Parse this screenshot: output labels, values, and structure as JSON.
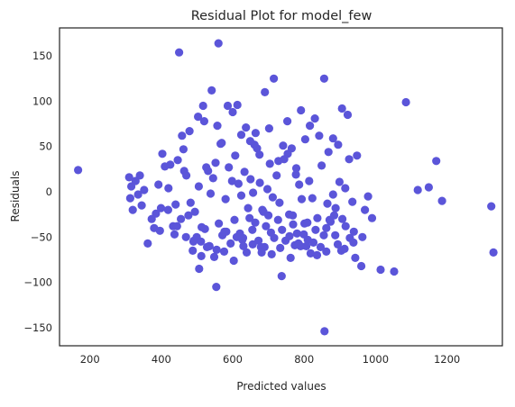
{
  "chart_data": {
    "type": "scatter",
    "title": "Residual Plot for model_few",
    "xlabel": "Predicted values",
    "ylabel": "Residuals",
    "xlim": [
      115,
      1355
    ],
    "ylim": [
      -170,
      181
    ],
    "xticks": [
      200,
      400,
      600,
      800,
      1000,
      1200
    ],
    "yticks": [
      -150,
      -100,
      -50,
      0,
      50,
      100,
      150
    ],
    "grid": false,
    "color": "#5b55d9",
    "series": [
      {
        "x": [
          167,
          310,
          316,
          335,
          345,
          362,
          399,
          403,
          425,
          440,
          450,
          464,
          490,
          506,
          528,
          554,
          560,
          576,
          627,
          643,
          661,
          689,
          737,
          754,
          762,
          774,
          793,
          806,
          857,
          881,
          943,
          313,
          320,
          328,
          340,
          352,
          373,
          385,
          392,
          410,
          420,
          433,
          446,
          458,
          470,
          482,
          494,
          505,
          513,
          520,
          531,
          538,
          545,
          552,
          566,
          580,
          589,
          598,
          607,
          616,
          624,
          633,
          650,
          657,
          668,
          676,
          683,
          697,
          704,
          712,
          723,
          731,
          744,
          768,
          777,
          786,
          801,
          814,
          823,
          832,
          849,
          865,
          871,
          888,
          899,
          907,
          915,
          926,
          935,
          960,
          970,
          979,
          990,
          380,
          396,
          419,
          437,
          455,
          476,
          488,
          499,
          511,
          522,
          535,
          548,
          561,
          571,
          582,
          594,
          605,
          611,
          620,
          630,
          639,
          647,
          655,
          663,
          672,
          679,
          686,
          693,
          700,
          709,
          716,
          727,
          738,
          748,
          758,
          769,
          780,
          790,
          799,
          809,
          818,
          826,
          837,
          846,
          855,
          862,
          874,
          884,
          894,
          904,
          916,
          928,
          939,
          1014,
          1052,
          1085,
          1118,
          1149,
          1170,
          1186,
          1324,
          1330,
          444,
          462,
          479,
          503,
          517,
          526,
          541,
          557,
          569,
          586,
          600,
          613,
          624,
          637,
          649,
          664,
          675,
          690,
          702,
          715,
          728,
          741,
          753,
          765,
          778,
          791,
          803,
          816,
          830,
          842,
          856,
          868,
          881,
          895,
          906,
          922,
          948,
          469,
          491,
          512,
          534,
          555,
          577,
          603,
          629,
          656,
          681,
          707,
          733,
          759,
          784,
          810,
          836,
          862,
          887,
          913,
          938,
          963
        ],
        "y": [
          24,
          16,
          6,
          -3,
          -15,
          -57,
          -18,
          42,
          30,
          -14,
          154,
          23,
          -55,
          -85,
          -61,
          -105,
          164,
          -66,
          -53,
          -18,
          52,
          -61,
          -93,
          42,
          -73,
          -59,
          -8,
          -60,
          -154,
          -3,
          -73,
          -7,
          -20,
          12,
          18,
          2,
          -30,
          -24,
          8,
          28,
          4,
          -38,
          35,
          62,
          18,
          -12,
          -22,
          6,
          -39,
          78,
          23,
          -2,
          15,
          32,
          53,
          -8,
          27,
          12,
          40,
          9,
          -4,
          22,
          14,
          -1,
          48,
          10,
          -20,
          3,
          31,
          -6,
          18,
          -12,
          36,
          -26,
          19,
          8,
          -35,
          12,
          -7,
          -42,
          29,
          -13,
          -31,
          -18,
          11,
          -30,
          4,
          36,
          -11,
          -82,
          -20,
          -5,
          -29,
          -40,
          -43,
          -20,
          -47,
          -30,
          -26,
          -65,
          -50,
          -55,
          -41,
          -60,
          -72,
          -35,
          -48,
          -44,
          -57,
          -31,
          -50,
          -46,
          -60,
          -67,
          -29,
          -42,
          -34,
          -54,
          -61,
          -22,
          -38,
          -26,
          -69,
          -51,
          -31,
          -42,
          -54,
          -25,
          -36,
          -46,
          -60,
          -47,
          -34,
          -68,
          -56,
          -29,
          -61,
          -48,
          -40,
          -33,
          -26,
          -58,
          -65,
          -38,
          -51,
          -44,
          -86,
          -88,
          99,
          2,
          5,
          34,
          -10,
          -16,
          -67,
          -38,
          47,
          67,
          83,
          95,
          27,
          112,
          73,
          54,
          95,
          88,
          96,
          63,
          71,
          56,
          65,
          41,
          110,
          70,
          125,
          34,
          51,
          78,
          48,
          26,
          90,
          58,
          73,
          81,
          62,
          125,
          44,
          59,
          52,
          92,
          85,
          40,
          -50,
          -54,
          -71,
          -60,
          -64,
          -44,
          -76,
          -51,
          -58,
          -67,
          -45,
          -62,
          -49,
          -57,
          -53,
          -70,
          -66,
          -48,
          -63,
          -56,
          -50
        ]
      }
    ]
  }
}
